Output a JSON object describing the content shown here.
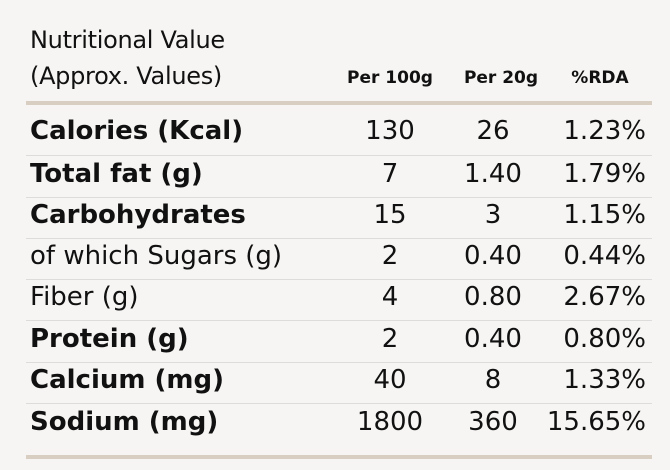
{
  "header": {
    "title": "Nutritional Value",
    "subtitle": "(Approx. Values)"
  },
  "table": {
    "columns": [
      "Per 100g",
      "Per 20g",
      "%RDA"
    ],
    "rows": [
      [
        "Calories (Kcal)",
        "130",
        "26",
        "1.23%"
      ],
      [
        "Total fat (g)",
        "7",
        "1.40",
        "1.79%"
      ],
      [
        "Carbohydrates",
        "15",
        "3",
        "1.15%"
      ],
      [
        "of which Sugars (g)",
        "2",
        "0.40",
        "0.44%"
      ],
      [
        "Fiber (g)",
        "4",
        "0.80",
        "2.67%"
      ],
      [
        "Protein (g)",
        "2",
        "0.40",
        "0.80%"
      ],
      [
        "Calcium (mg)",
        "40",
        "8",
        "1.33%"
      ],
      [
        "Sodium  (mg)",
        "1800",
        "360",
        "15.65%"
      ]
    ]
  }
}
